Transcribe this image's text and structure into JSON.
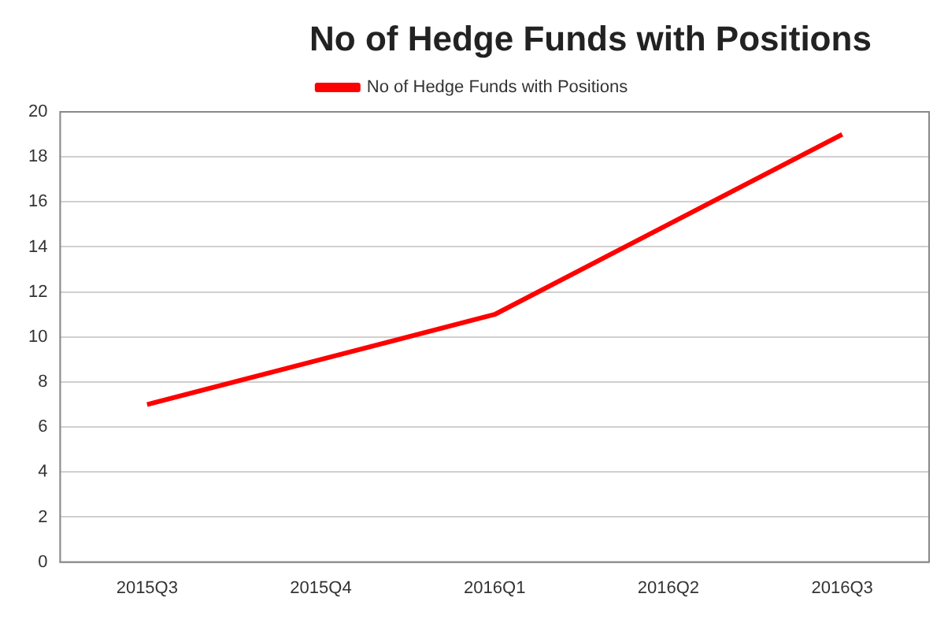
{
  "chart_data": {
    "type": "line",
    "title": "No of Hedge Funds with Positions",
    "categories": [
      "2015Q3",
      "2015Q4",
      "2016Q1",
      "2016Q2",
      "2016Q3"
    ],
    "series": [
      {
        "name": "No of Hedge Funds with Positions",
        "color": "#ff0000",
        "values": [
          7,
          9,
          11,
          15,
          19
        ]
      }
    ],
    "ylim": [
      0,
      20
    ],
    "yticks": [
      0,
      2,
      4,
      6,
      8,
      10,
      12,
      14,
      16,
      18,
      20
    ],
    "grid": "y",
    "legend": "top",
    "marker": "none",
    "line_style": "solid"
  }
}
